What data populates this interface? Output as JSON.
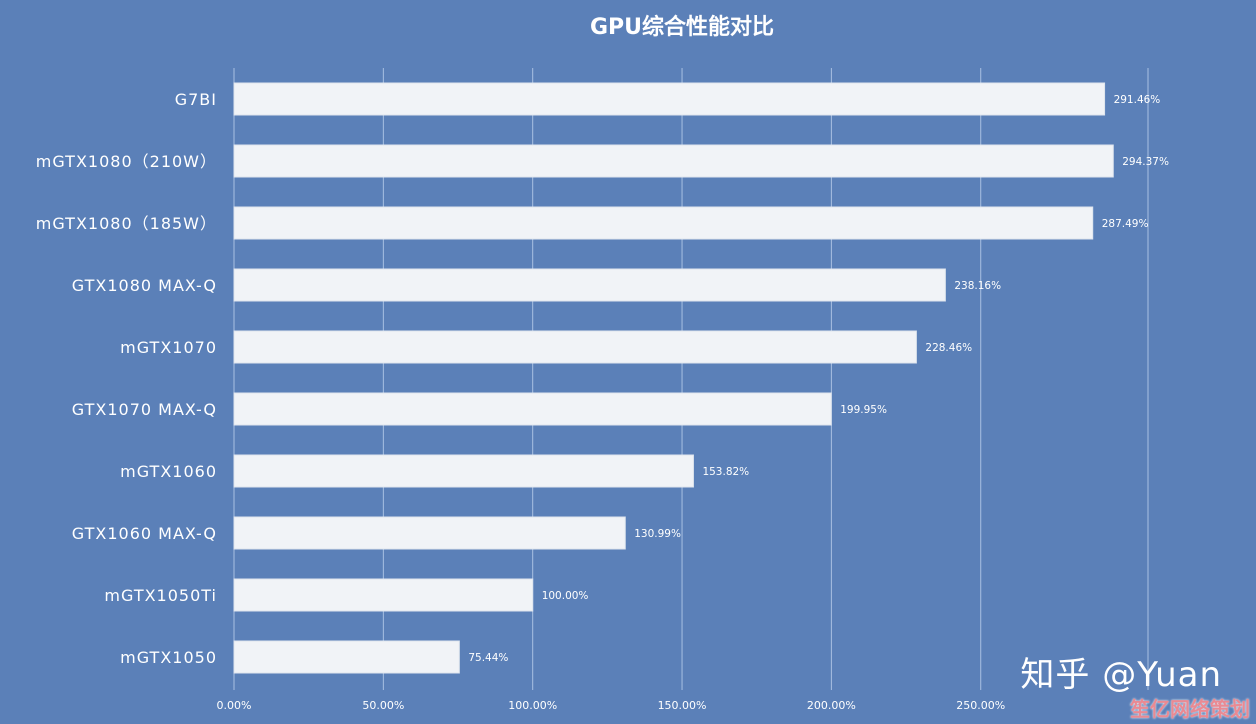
{
  "chart_data": {
    "type": "bar",
    "orientation": "horizontal",
    "title": "GPU综合性能对比",
    "categories": [
      "G7BI",
      "mGTX1080（210W）",
      "mGTX1080（185W）",
      "GTX1080 MAX-Q",
      "mGTX1070",
      "GTX1070 MAX-Q",
      "mGTX1060",
      "GTX1060 MAX-Q",
      "mGTX1050Ti",
      "mGTX1050"
    ],
    "values": [
      291.46,
      294.37,
      287.49,
      238.16,
      228.46,
      199.95,
      153.82,
      130.99,
      100.0,
      75.44
    ],
    "value_labels": [
      "291.46%",
      "294.37%",
      "287.49%",
      "238.16%",
      "228.46%",
      "199.95%",
      "153.82%",
      "130.99%",
      "100.00%",
      "75.44%"
    ],
    "xlim": [
      0,
      306
    ],
    "xticks": [
      0,
      50,
      100,
      150,
      200,
      250
    ],
    "xtick_labels": [
      "0.00%",
      "50.00%",
      "100.00%",
      "150.00%",
      "200.00%",
      "250.00%"
    ],
    "grid": true,
    "colors": {
      "background": "#5b80b8",
      "bar": "#f1f3f7",
      "grid": "#a9c0e2",
      "text": "#ffffff"
    }
  },
  "watermark": {
    "text": "知乎 @Yuan",
    "site": "笙亿网络策划"
  }
}
